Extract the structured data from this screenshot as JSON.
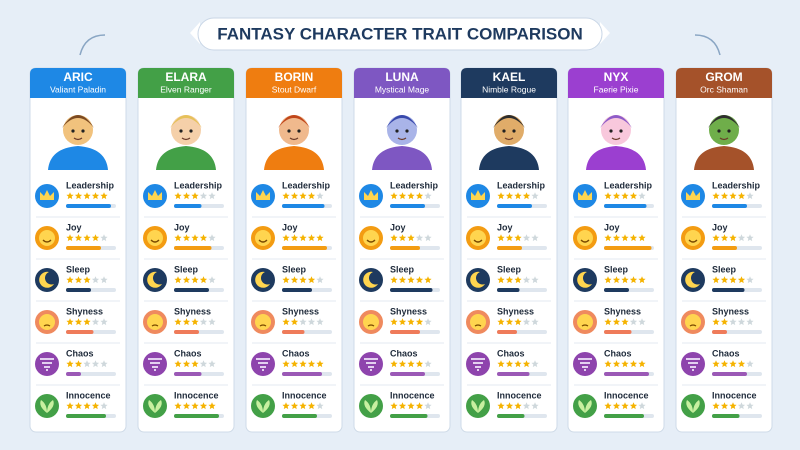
{
  "title": "FANTASY CHARACTER TRAIT COMPARISON",
  "cards": [
    {
      "name": "ARIC",
      "subtitle": "Valiant Paladin",
      "color": "#1e88e5",
      "traits": [
        {
          "name": "Leadership",
          "stars": 5,
          "level": 90
        },
        {
          "name": "Joy",
          "stars": 4,
          "level": 70
        },
        {
          "name": "Sleep",
          "stars": 3,
          "level": 50
        },
        {
          "name": "Shyness",
          "stars": 3,
          "level": 55
        },
        {
          "name": "Chaos",
          "stars": 2,
          "level": 30
        },
        {
          "name": "Innocence",
          "stars": 4,
          "level": 80
        }
      ]
    },
    {
      "name": "ELARA",
      "subtitle": "Elven Ranger",
      "color": "#43a047",
      "traits": [
        {
          "name": "Leadership",
          "stars": 3,
          "level": 55
        },
        {
          "name": "Joy",
          "stars": 4,
          "level": 75
        },
        {
          "name": "Sleep",
          "stars": 4,
          "level": 70
        },
        {
          "name": "Shyness",
          "stars": 3,
          "level": 50
        },
        {
          "name": "Chaos",
          "stars": 3,
          "level": 55
        },
        {
          "name": "Innocence",
          "stars": 5,
          "level": 90
        }
      ]
    },
    {
      "name": "BORIN",
      "subtitle": "Stout Dwarf",
      "color": "#ef7d10",
      "traits": [
        {
          "name": "Leadership",
          "stars": 4,
          "level": 85
        },
        {
          "name": "Joy",
          "stars": 5,
          "level": 90
        },
        {
          "name": "Sleep",
          "stars": 4,
          "level": 60
        },
        {
          "name": "Shyness",
          "stars": 2,
          "level": 45
        },
        {
          "name": "Chaos",
          "stars": 5,
          "level": 80
        },
        {
          "name": "Innocence",
          "stars": 4,
          "level": 70
        }
      ]
    },
    {
      "name": "LUNA",
      "subtitle": "Mystical Mage",
      "color": "#7e57c2",
      "traits": [
        {
          "name": "Leadership",
          "stars": 4,
          "level": 70
        },
        {
          "name": "Joy",
          "stars": 3,
          "level": 60
        },
        {
          "name": "Sleep",
          "stars": 5,
          "level": 85
        },
        {
          "name": "Shyness",
          "stars": 4,
          "level": 60
        },
        {
          "name": "Chaos",
          "stars": 4,
          "level": 70
        },
        {
          "name": "Innocence",
          "stars": 4,
          "level": 75
        }
      ]
    },
    {
      "name": "KAEL",
      "subtitle": "Nimble Rogue",
      "color": "#1e3a5f",
      "traits": [
        {
          "name": "Leadership",
          "stars": 4,
          "level": 70
        },
        {
          "name": "Joy",
          "stars": 3,
          "level": 50
        },
        {
          "name": "Sleep",
          "stars": 3,
          "level": 45
        },
        {
          "name": "Shyness",
          "stars": 3,
          "level": 40
        },
        {
          "name": "Chaos",
          "stars": 4,
          "level": 65
        },
        {
          "name": "Innocence",
          "stars": 3,
          "level": 55
        }
      ]
    },
    {
      "name": "NYX",
      "subtitle": "Faerie Pixie",
      "color": "#9b3fd0",
      "traits": [
        {
          "name": "Leadership",
          "stars": 4,
          "level": 85
        },
        {
          "name": "Joy",
          "stars": 5,
          "level": 95
        },
        {
          "name": "Sleep",
          "stars": 5,
          "level": 50
        },
        {
          "name": "Shyness",
          "stars": 3,
          "level": 55
        },
        {
          "name": "Chaos",
          "stars": 5,
          "level": 90
        },
        {
          "name": "Innocence",
          "stars": 4,
          "level": 80
        }
      ]
    },
    {
      "name": "GROM",
      "subtitle": "Orc Shaman",
      "color": "#a5522a",
      "traits": [
        {
          "name": "Leadership",
          "stars": 4,
          "level": 70
        },
        {
          "name": "Joy",
          "stars": 3,
          "level": 50
        },
        {
          "name": "Sleep",
          "stars": 4,
          "level": 65
        },
        {
          "name": "Shyness",
          "stars": 2,
          "level": 30
        },
        {
          "name": "Chaos",
          "stars": 4,
          "level": 70
        },
        {
          "name": "Innocence",
          "stars": 3,
          "level": 55
        }
      ]
    }
  ]
}
